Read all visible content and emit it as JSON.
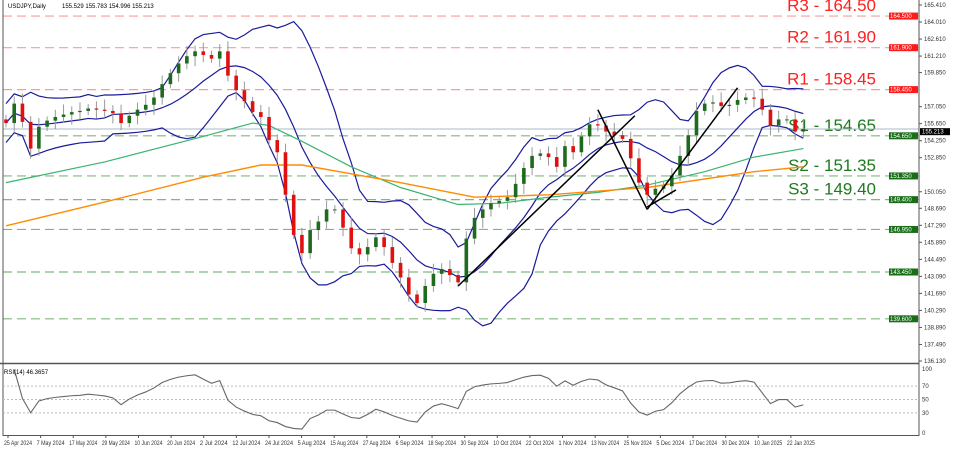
{
  "header": {
    "symbol": "USDJPY,Daily",
    "ohlc": "155.529 155.783 154.996 155.213"
  },
  "rsi_header": "RSI(14) 46.3657",
  "chart_data": [
    {
      "type": "candlestick",
      "symbol": "USDJPY",
      "timeframe": "Daily",
      "ylim": [
        136.13,
        165.41
      ],
      "y_ticks": [
        "165.410",
        "164.010",
        "162.610",
        "161.210",
        "159.850",
        "157.050",
        "155.650",
        "154.250",
        "152.850",
        "150.050",
        "148.690",
        "147.290",
        "145.890",
        "144.490",
        "143.090",
        "141.690",
        "140.290",
        "138.890",
        "137.490",
        "136.130"
      ],
      "x_tick_labels": [
        "25 Apr 2024",
        "7 May 2024",
        "17 May 2024",
        "29 May 2024",
        "10 Jun 2024",
        "20 Jun 2024",
        "2 Jul 2024",
        "12 Jul 2024",
        "24 Jul 2024",
        "5 Aug 2024",
        "15 Aug 2024",
        "27 Aug 2024",
        "6 Sep 2024",
        "18 Sep 2024",
        "30 Sep 2024",
        "10 Oct 2024",
        "22 Oct 2024",
        "1 Nov 2024",
        "13 Nov 2024",
        "25 Nov 2024",
        "5 Dec 2024",
        "17 Dec 2024",
        "30 Dec 2024",
        "10 Jan 2025",
        "22 Jan 2025"
      ],
      "closes": [
        155.7,
        157.3,
        155.8,
        153.6,
        155.4,
        155.9,
        156.2,
        156.4,
        156.6,
        156.7,
        156.9,
        156.8,
        156.7,
        156.5,
        155.7,
        156.3,
        156.8,
        157.2,
        157.8,
        158.9,
        159.8,
        160.6,
        161.2,
        161.6,
        161.3,
        161.0,
        161.6,
        159.6,
        158.4,
        157.5,
        156.6,
        156.2,
        154.3,
        153.3,
        149.8,
        146.5,
        145.0,
        146.9,
        147.6,
        148.6,
        148.6,
        147.1,
        145.4,
        144.9,
        145.5,
        146.3,
        145.5,
        144.2,
        143.0,
        141.6,
        140.9,
        142.3,
        143.3,
        143.7,
        143.2,
        142.6,
        146.2,
        147.9,
        148.6,
        149.1,
        149.3,
        149.6,
        150.7,
        152.0,
        153.0,
        153.2,
        152.9,
        152.1,
        153.8,
        153.3,
        154.6,
        155.6,
        155.5,
        155.0,
        154.7,
        154.4,
        152.8,
        150.8,
        149.8,
        150.3,
        150.5,
        151.4,
        153.0,
        154.7,
        156.7,
        157.3,
        157.4,
        157.1,
        157.2,
        157.6,
        157.8,
        157.7,
        156.8,
        155.5,
        156.0,
        156.0,
        155.0,
        155.213
      ],
      "current_price": "155.213",
      "moving_average_green": [
        [
          0,
          150.8
        ],
        [
          12,
          152.5
        ],
        [
          24,
          154.6
        ],
        [
          30,
          155.7
        ],
        [
          32,
          155.5
        ],
        [
          36,
          154.2
        ],
        [
          42,
          152.1
        ],
        [
          48,
          150.4
        ],
        [
          55,
          149.0
        ],
        [
          60,
          149.1
        ],
        [
          66,
          149.6
        ],
        [
          72,
          150.0
        ],
        [
          78,
          150.6
        ],
        [
          85,
          151.7
        ],
        [
          91,
          152.9
        ],
        [
          97,
          153.6
        ]
      ],
      "moving_average_orange": [
        [
          0,
          147.25
        ],
        [
          12,
          149.2
        ],
        [
          24,
          151.25
        ],
        [
          31,
          152.25
        ],
        [
          36,
          152.25
        ],
        [
          48,
          150.8
        ],
        [
          57,
          149.6
        ],
        [
          66,
          149.8
        ],
        [
          78,
          150.4
        ],
        [
          91,
          151.7
        ],
        [
          97,
          152.1
        ]
      ],
      "bollinger_bands": true,
      "trendlines": [
        {
          "from": [
            55,
            142.3
          ],
          "to": [
            76.5,
            156.3
          ]
        },
        {
          "from": [
            72,
            156.8
          ],
          "to": [
            78,
            148.6
          ]
        },
        {
          "from": [
            78,
            148.6
          ],
          "to": [
            89,
            158.6
          ]
        },
        {
          "from": [
            78,
            148.8
          ],
          "to": [
            81.5,
            150.2
          ]
        }
      ],
      "levels": [
        {
          "label": "R3 - 164.50",
          "price": 164.5,
          "tag": "164.500",
          "kind": "resistance"
        },
        {
          "label": "R2 - 161.90",
          "price": 161.9,
          "tag": "161.900",
          "kind": "resistance"
        },
        {
          "label": "R1 - 158.45",
          "price": 158.45,
          "tag": "158.450",
          "kind": "resistance"
        },
        {
          "label": "S1 - 154.65",
          "price": 154.65,
          "tag": "154.650",
          "kind": "support"
        },
        {
          "label": "S2 - 151.35",
          "price": 151.35,
          "tag": "151.350",
          "kind": "support"
        },
        {
          "label": "S3 - 149.40",
          "price": 149.4,
          "tag": "149.400",
          "kind": "support"
        },
        {
          "label": "",
          "price": 146.95,
          "tag": "146.950",
          "kind": "support"
        },
        {
          "label": "",
          "price": 143.45,
          "tag": "143.450",
          "kind": "support"
        },
        {
          "label": "",
          "price": 139.6,
          "tag": "139.600",
          "kind": "support"
        }
      ],
      "colors": {
        "bull": "#1e6b1e",
        "bear": "#e01010",
        "bands": "#1a1a9c",
        "ma_green": "#3cb371",
        "ma_orange": "#ff8c00",
        "resistance": "#ff4d4d",
        "support": "#2e8b2e",
        "current": "#000000"
      }
    },
    {
      "type": "line",
      "name": "RSI(14)",
      "ylim": [
        0,
        100
      ],
      "y_ticks": [
        "100",
        "70",
        "50",
        "30",
        "0"
      ],
      "levels": [
        70,
        50,
        30
      ]
    }
  ]
}
